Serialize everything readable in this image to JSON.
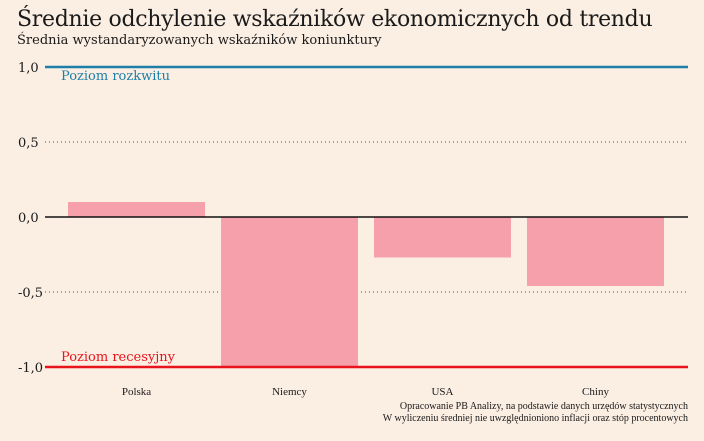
{
  "chart_data": {
    "type": "bar",
    "title": "Średnie odchylenie wskaźników ekonomicznych od trendu",
    "subtitle": "Średnia wystandaryzowanych wskaźników koniunktury",
    "categories": [
      "Polska",
      "Niemcy",
      "USA",
      "Chiny"
    ],
    "values": [
      0.1,
      -1.0,
      -0.27,
      -0.46
    ],
    "ylim": [
      -1.0,
      1.0
    ],
    "yticks": [
      1.0,
      0.5,
      0.0,
      -0.5,
      -1.0
    ],
    "ytick_labels": [
      "1,0",
      "0,5",
      "0,0",
      "-0,5",
      "-1,0"
    ],
    "grid": "dotted horizontal",
    "bar_color": "#f6a0ab",
    "reference_lines": [
      {
        "value": 1.0,
        "label": "Poziom rozkwitu",
        "color": "#1d7fa8"
      },
      {
        "value": -1.0,
        "label": "Poziom recesyjny",
        "color": "#e8141b"
      }
    ],
    "source_lines": [
      "Opracowanie PB Analizy, na podstawie danych urzędów statystycznych",
      "W wyliczeniu średniej nie uwzględnioniono inflacji oraz stóp procentowych"
    ]
  }
}
